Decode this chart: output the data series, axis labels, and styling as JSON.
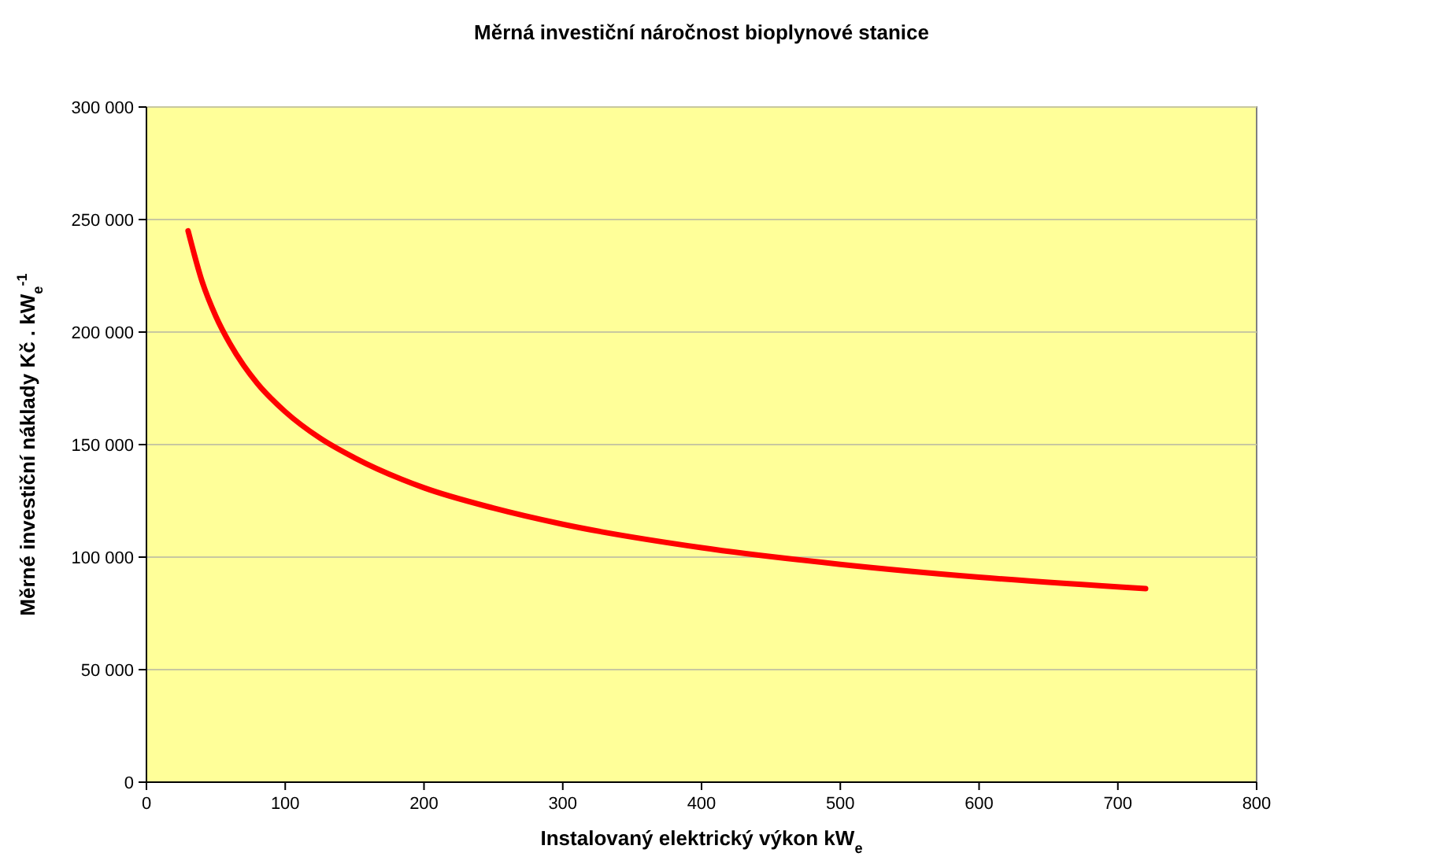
{
  "chart_data": {
    "type": "line",
    "title": "Měrná investiční náročnost bioplynové stanice",
    "xlabel": "Instalovaný elektrický výkon kW$_{e}$",
    "ylabel": "Měrné investiční náklady Kč . kW$_{e}$$^{-1}$",
    "x": [
      30,
      40,
      50,
      60,
      70,
      80,
      100,
      125,
      150,
      200,
      250,
      300,
      400,
      500,
      600,
      720
    ],
    "series": [
      {
        "color": "#ff0000",
        "values": [
          245000,
          222700,
          207000,
          195000,
          185200,
          177100,
          164600,
          152900,
          144100,
          130800,
          121800,
          114600,
          104200,
          96800,
          91100,
          86000
        ]
      }
    ],
    "xlim": [
      0,
      800
    ],
    "xticks": [
      0,
      100,
      200,
      300,
      400,
      500,
      600,
      700,
      800
    ],
    "ylim": [
      0,
      300000
    ],
    "yticks": [
      0,
      {
        "value": 50000,
        "label": "50 000"
      },
      {
        "value": 100000,
        "label": "100 000"
      },
      {
        "value": 150000,
        "label": "150 000"
      },
      {
        "value": 200000,
        "label": "200 000"
      },
      {
        "value": 250000,
        "label": "250 000"
      },
      {
        "value": 300000,
        "label": "300 000"
      }
    ],
    "grid": "y",
    "marker": "none",
    "line_style": "solid"
  }
}
